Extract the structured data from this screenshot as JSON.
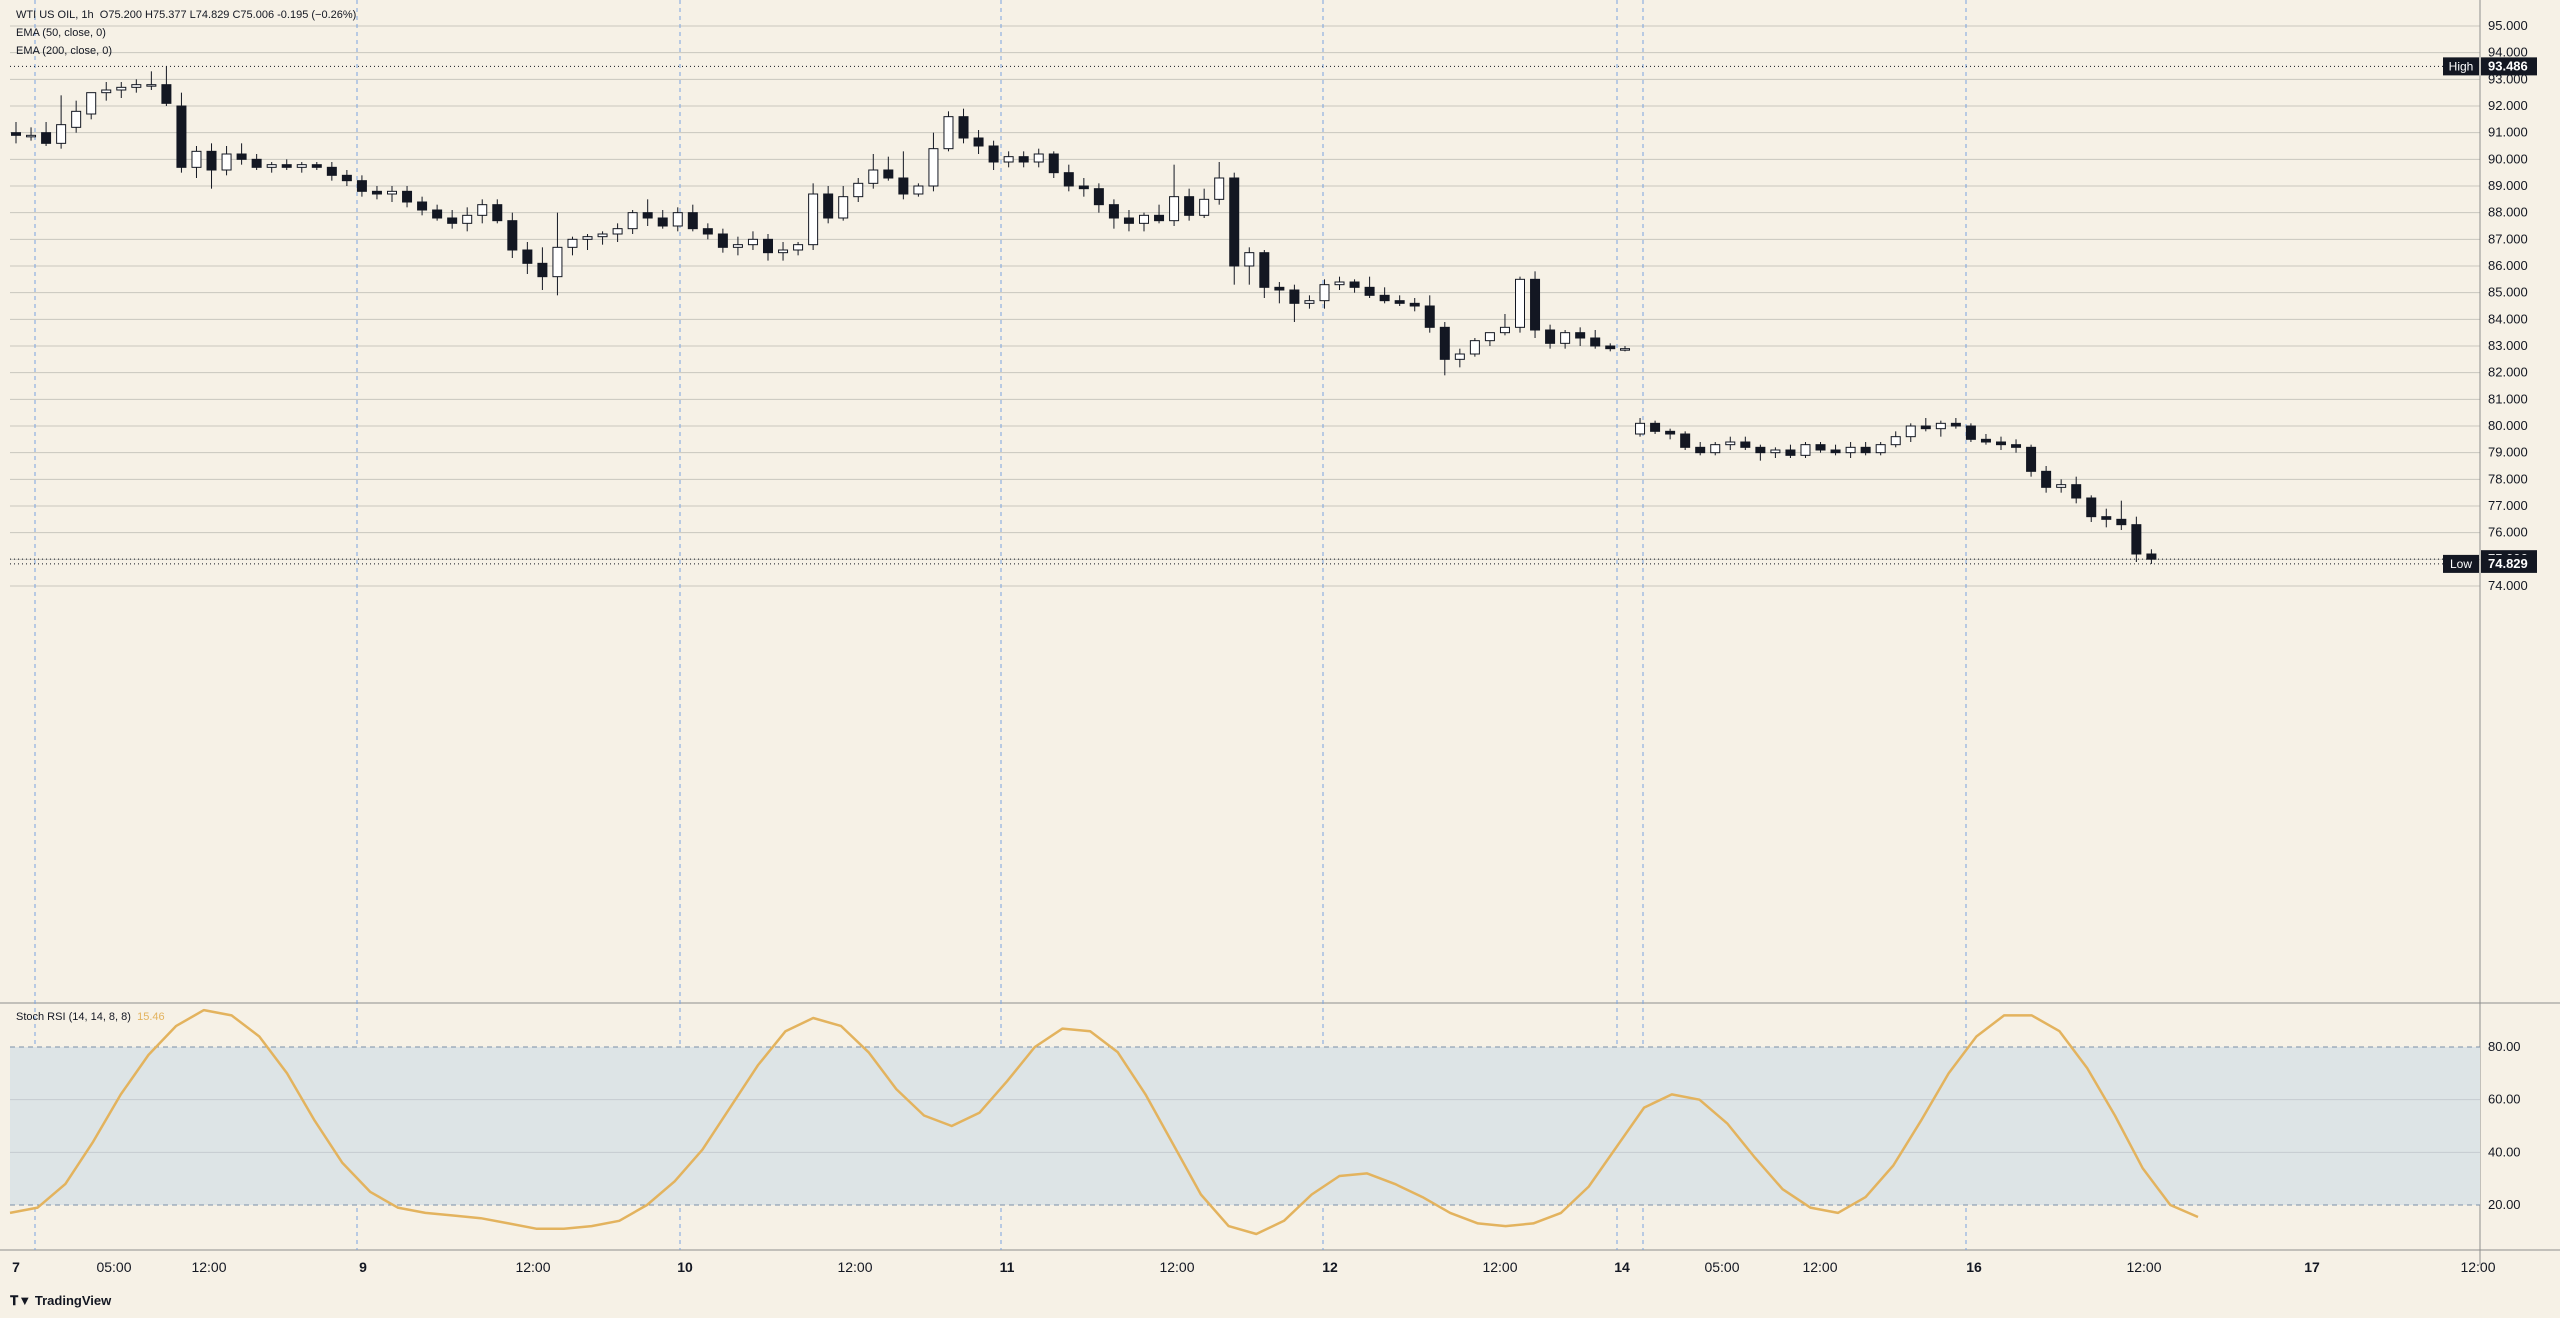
{
  "header": {
    "symbol": "WTI US OIL, 1h",
    "ohlc": "O75.200  H75.377  L74.829  C75.006  -0.195 (−0.26%)",
    "ema50": "EMA (50, close, 0)",
    "ema200": "EMA (200, close, 0)"
  },
  "price_panel": {
    "ticks": [
      "95.000",
      "94.000",
      "93.000",
      "92.000",
      "91.000",
      "90.000",
      "89.000",
      "88.000",
      "87.000",
      "86.000",
      "85.000",
      "84.000",
      "83.000",
      "82.000",
      "81.000",
      "80.000",
      "79.000",
      "78.000",
      "77.000",
      "76.000",
      "74.000"
    ],
    "high_label": "High",
    "high_value": "93.486",
    "low_label": "Low",
    "low_value": "74.829",
    "last_value": "75.006"
  },
  "rsi_panel": {
    "label": "Stoch RSI (14, 14, 8, 8)",
    "value": "15.46",
    "ticks": [
      "80.00",
      "60.00",
      "40.00",
      "20.00"
    ]
  },
  "time_axis": [
    "7",
    "05:00",
    "12:00",
    "9",
    "12:00",
    "10",
    "12:00",
    "11",
    "12:00",
    "12",
    "12:00",
    "14",
    "05:00",
    "12:00",
    "16",
    "12:00",
    "17",
    "12:00"
  ],
  "brand": "TradingView",
  "colors": {
    "background": "#f6f1e6",
    "candle_up": "#ffffff",
    "candle_down": "#131722",
    "rsi_line": "#e3b35e",
    "rsi_band": "#dde4e6",
    "grid": "#c9c6be",
    "separator": "#7aa4e0"
  },
  "chart_data": [
    {
      "type": "candlestick",
      "title": "WTI US OIL, 1h",
      "ylim": [
        74.0,
        95.5
      ],
      "high": 93.486,
      "low": 74.829,
      "last": 75.006,
      "candles": [
        [
          91.0,
          91.4,
          90.6,
          90.9
        ],
        [
          90.9,
          91.2,
          90.7,
          90.9
        ],
        [
          91.0,
          91.4,
          90.5,
          90.6
        ],
        [
          90.6,
          92.4,
          90.4,
          91.3
        ],
        [
          91.2,
          92.2,
          91.0,
          91.8
        ],
        [
          91.7,
          92.5,
          91.5,
          92.5
        ],
        [
          92.5,
          92.9,
          92.2,
          92.6
        ],
        [
          92.6,
          92.9,
          92.3,
          92.7
        ],
        [
          92.7,
          93.0,
          92.5,
          92.8
        ],
        [
          92.8,
          93.3,
          92.6,
          92.8
        ],
        [
          92.8,
          93.486,
          92.0,
          92.1
        ],
        [
          92.0,
          92.5,
          89.5,
          89.7
        ],
        [
          89.7,
          90.5,
          89.3,
          90.3
        ],
        [
          90.3,
          90.6,
          88.9,
          89.6
        ],
        [
          89.6,
          90.5,
          89.4,
          90.2
        ],
        [
          90.2,
          90.6,
          89.8,
          90.0
        ],
        [
          90.0,
          90.2,
          89.6,
          89.7
        ],
        [
          89.7,
          89.9,
          89.5,
          89.8
        ],
        [
          89.8,
          90.0,
          89.6,
          89.7
        ],
        [
          89.7,
          89.9,
          89.5,
          89.8
        ],
        [
          89.8,
          89.9,
          89.6,
          89.7
        ],
        [
          89.7,
          89.9,
          89.2,
          89.4
        ],
        [
          89.4,
          89.6,
          89.0,
          89.2
        ],
        [
          89.2,
          89.4,
          88.6,
          88.8
        ],
        [
          88.8,
          89.0,
          88.5,
          88.7
        ],
        [
          88.7,
          89.0,
          88.4,
          88.8
        ],
        [
          88.8,
          89.0,
          88.2,
          88.4
        ],
        [
          88.4,
          88.6,
          87.9,
          88.1
        ],
        [
          88.1,
          88.3,
          87.7,
          87.8
        ],
        [
          87.8,
          88.1,
          87.4,
          87.6
        ],
        [
          87.6,
          88.2,
          87.3,
          87.9
        ],
        [
          87.9,
          88.5,
          87.6,
          88.3
        ],
        [
          88.3,
          88.5,
          87.6,
          87.7
        ],
        [
          87.7,
          88.0,
          86.3,
          86.6
        ],
        [
          86.6,
          86.9,
          85.7,
          86.1
        ],
        [
          86.1,
          86.7,
          85.1,
          85.6
        ],
        [
          85.6,
          88.0,
          84.9,
          86.7
        ],
        [
          86.7,
          87.1,
          86.4,
          87.0
        ],
        [
          87.0,
          87.2,
          86.6,
          87.1
        ],
        [
          87.1,
          87.3,
          86.8,
          87.2
        ],
        [
          87.2,
          87.6,
          86.9,
          87.4
        ],
        [
          87.4,
          88.1,
          87.2,
          88.0
        ],
        [
          88.0,
          88.5,
          87.5,
          87.8
        ],
        [
          87.8,
          88.1,
          87.4,
          87.5
        ],
        [
          87.5,
          88.2,
          87.3,
          88.0
        ],
        [
          88.0,
          88.3,
          87.3,
          87.4
        ],
        [
          87.4,
          87.6,
          87.0,
          87.2
        ],
        [
          87.2,
          87.4,
          86.5,
          86.7
        ],
        [
          86.7,
          87.1,
          86.4,
          86.8
        ],
        [
          86.8,
          87.3,
          86.6,
          87.0
        ],
        [
          87.0,
          87.2,
          86.2,
          86.5
        ],
        [
          86.5,
          86.9,
          86.2,
          86.6
        ],
        [
          86.6,
          86.9,
          86.4,
          86.8
        ],
        [
          86.8,
          89.1,
          86.6,
          88.7
        ],
        [
          88.7,
          89.0,
          87.6,
          87.8
        ],
        [
          87.8,
          89.0,
          87.7,
          88.6
        ],
        [
          88.6,
          89.3,
          88.4,
          89.1
        ],
        [
          89.1,
          90.2,
          88.9,
          89.6
        ],
        [
          89.6,
          90.1,
          89.2,
          89.3
        ],
        [
          89.3,
          90.3,
          88.5,
          88.7
        ],
        [
          88.7,
          89.1,
          88.6,
          89.0
        ],
        [
          89.0,
          91.0,
          88.8,
          90.4
        ],
        [
          90.4,
          91.8,
          90.3,
          91.6
        ],
        [
          91.6,
          91.9,
          90.6,
          90.8
        ],
        [
          90.8,
          91.1,
          90.2,
          90.5
        ],
        [
          90.5,
          90.7,
          89.6,
          89.9
        ],
        [
          89.9,
          90.3,
          89.7,
          90.1
        ],
        [
          90.1,
          90.3,
          89.7,
          89.9
        ],
        [
          89.9,
          90.4,
          89.7,
          90.2
        ],
        [
          90.2,
          90.3,
          89.3,
          89.5
        ],
        [
          89.5,
          89.8,
          88.8,
          89.0
        ],
        [
          89.0,
          89.3,
          88.6,
          88.9
        ],
        [
          88.9,
          89.1,
          88.0,
          88.3
        ],
        [
          88.3,
          88.5,
          87.4,
          87.8
        ],
        [
          87.8,
          88.1,
          87.3,
          87.6
        ],
        [
          87.6,
          88.0,
          87.3,
          87.9
        ],
        [
          87.9,
          88.3,
          87.6,
          87.7
        ],
        [
          87.7,
          89.8,
          87.5,
          88.6
        ],
        [
          88.6,
          88.9,
          87.7,
          87.9
        ],
        [
          87.9,
          88.9,
          87.8,
          88.5
        ],
        [
          88.5,
          89.9,
          88.3,
          89.3
        ],
        [
          89.3,
          89.5,
          85.3,
          86.0
        ],
        [
          86.0,
          86.7,
          85.3,
          86.5
        ],
        [
          86.5,
          86.6,
          84.8,
          85.2
        ],
        [
          85.2,
          85.4,
          84.6,
          85.1
        ],
        [
          85.1,
          85.3,
          83.9,
          84.6
        ],
        [
          84.6,
          84.9,
          84.4,
          84.7
        ],
        [
          84.7,
          85.5,
          84.4,
          85.3
        ],
        [
          85.3,
          85.6,
          85.1,
          85.4
        ],
        [
          85.4,
          85.5,
          85.0,
          85.2
        ],
        [
          85.2,
          85.6,
          84.8,
          84.9
        ],
        [
          84.9,
          85.2,
          84.6,
          84.7
        ],
        [
          84.7,
          84.9,
          84.5,
          84.6
        ],
        [
          84.6,
          84.8,
          84.3,
          84.5
        ],
        [
          84.5,
          84.9,
          83.5,
          83.7
        ],
        [
          83.7,
          83.9,
          81.9,
          82.5
        ],
        [
          82.5,
          82.9,
          82.2,
          82.7
        ],
        [
          82.7,
          83.3,
          82.6,
          83.2
        ],
        [
          83.2,
          83.5,
          83.0,
          83.5
        ],
        [
          83.5,
          84.2,
          83.4,
          83.7
        ],
        [
          83.7,
          85.6,
          83.5,
          85.5
        ],
        [
          85.5,
          85.8,
          83.3,
          83.6
        ],
        [
          83.6,
          83.8,
          82.9,
          83.1
        ],
        [
          83.1,
          83.6,
          82.9,
          83.5
        ],
        [
          83.5,
          83.7,
          83.0,
          83.3
        ],
        [
          83.3,
          83.6,
          82.9,
          83.0
        ],
        [
          83.0,
          83.1,
          82.8,
          82.9
        ],
        [
          82.9,
          83.0,
          82.8,
          82.9
        ],
        [
          79.7,
          80.3,
          79.6,
          80.1
        ],
        [
          80.1,
          80.2,
          79.7,
          79.8
        ],
        [
          79.8,
          79.9,
          79.5,
          79.7
        ],
        [
          79.7,
          79.8,
          79.1,
          79.2
        ],
        [
          79.2,
          79.4,
          78.9,
          79.0
        ],
        [
          79.0,
          79.4,
          78.9,
          79.3
        ],
        [
          79.3,
          79.6,
          79.1,
          79.4
        ],
        [
          79.4,
          79.6,
          79.1,
          79.2
        ],
        [
          79.2,
          79.3,
          78.7,
          79.0
        ],
        [
          79.0,
          79.2,
          78.8,
          79.1
        ],
        [
          79.1,
          79.3,
          78.8,
          78.9
        ],
        [
          78.9,
          79.4,
          78.8,
          79.3
        ],
        [
          79.3,
          79.4,
          79.0,
          79.1
        ],
        [
          79.1,
          79.3,
          78.9,
          79.0
        ],
        [
          79.0,
          79.4,
          78.8,
          79.2
        ],
        [
          79.2,
          79.4,
          78.9,
          79.0
        ],
        [
          79.0,
          79.4,
          78.9,
          79.3
        ],
        [
          79.3,
          79.8,
          79.2,
          79.6
        ],
        [
          79.6,
          80.1,
          79.4,
          80.0
        ],
        [
          80.0,
          80.3,
          79.8,
          79.9
        ],
        [
          79.9,
          80.2,
          79.6,
          80.1
        ],
        [
          80.1,
          80.3,
          79.9,
          80.0
        ],
        [
          80.0,
          80.1,
          79.4,
          79.5
        ],
        [
          79.5,
          79.7,
          79.3,
          79.4
        ],
        [
          79.4,
          79.6,
          79.1,
          79.3
        ],
        [
          79.3,
          79.5,
          79.0,
          79.2
        ],
        [
          79.2,
          79.3,
          78.1,
          78.3
        ],
        [
          78.3,
          78.5,
          77.5,
          77.7
        ],
        [
          77.7,
          78.0,
          77.5,
          77.8
        ],
        [
          77.8,
          78.1,
          77.1,
          77.3
        ],
        [
          77.3,
          77.4,
          76.4,
          76.6
        ],
        [
          76.6,
          76.9,
          76.2,
          76.5
        ],
        [
          76.5,
          77.2,
          76.1,
          76.3
        ],
        [
          76.3,
          76.6,
          74.9,
          75.2
        ],
        [
          75.2,
          75.377,
          74.829,
          75.006
        ]
      ]
    },
    {
      "type": "line",
      "title": "Stoch RSI (14, 14, 8, 8)",
      "ylim": [
        0,
        100
      ],
      "last": 15.46,
      "series": [
        {
          "values": [
            17,
            19,
            28,
            44,
            62,
            77,
            88,
            94,
            92,
            84,
            70,
            52,
            36,
            25,
            19,
            17,
            16,
            15,
            13,
            11,
            11,
            12,
            14,
            20,
            29,
            41,
            57,
            73,
            86,
            91,
            88,
            78,
            64,
            54,
            50,
            55,
            67,
            80,
            87,
            86,
            78,
            62,
            43,
            24,
            12,
            9,
            14,
            24,
            31,
            32,
            28,
            23,
            17,
            13,
            12,
            13,
            17,
            27,
            42,
            57,
            62,
            60,
            51,
            38,
            26,
            19,
            17,
            23,
            35,
            52,
            70,
            84,
            92,
            92,
            86,
            72,
            54,
            34,
            20,
            15.46
          ]
        }
      ]
    }
  ]
}
